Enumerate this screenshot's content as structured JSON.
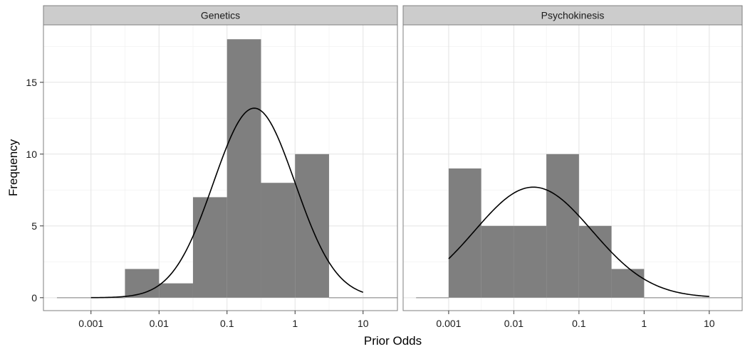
{
  "chart_data": {
    "type": "histogram",
    "xlabel": "Prior Odds",
    "ylabel": "Frequency",
    "x_scale": "log10",
    "xlim": [
      0.0002,
      32
    ],
    "ylim": [
      -0.9,
      19
    ],
    "x_ticks": [
      0.001,
      0.01,
      0.1,
      1,
      10
    ],
    "x_tick_labels": [
      "0.001",
      "0.01",
      "0.1",
      "1",
      "10"
    ],
    "y_ticks": [
      0,
      5,
      10,
      15
    ],
    "y_tick_labels": [
      "0",
      "5",
      "10",
      "15"
    ],
    "grid": true,
    "bar_color": "#7f7f7f",
    "curve_color": "#000000",
    "panels": [
      {
        "title": "Genetics",
        "bins": [
          {
            "x0": 0.000316,
            "x1": 0.001,
            "count": 0
          },
          {
            "x0": 0.001,
            "x1": 0.00316,
            "count": 0
          },
          {
            "x0": 0.00316,
            "x1": 0.01,
            "count": 2
          },
          {
            "x0": 0.01,
            "x1": 0.0316,
            "count": 1
          },
          {
            "x0": 0.0316,
            "x1": 0.1,
            "count": 7
          },
          {
            "x0": 0.1,
            "x1": 0.316,
            "count": 18
          },
          {
            "x0": 0.316,
            "x1": 1,
            "count": 8
          },
          {
            "x0": 1,
            "x1": 3.16,
            "count": 10
          },
          {
            "x0": 3.16,
            "x1": 10,
            "count": 0
          },
          {
            "x0": 10,
            "x1": 31.6,
            "count": 0
          }
        ],
        "curve": {
          "mean_log10": -0.6,
          "sd_log10": 0.6,
          "peak": 13.2,
          "x_from": 0.001,
          "x_to": 10
        }
      },
      {
        "title": "Psychokinesis",
        "bins": [
          {
            "x0": 0.000316,
            "x1": 0.001,
            "count": 0
          },
          {
            "x0": 0.001,
            "x1": 0.00316,
            "count": 9
          },
          {
            "x0": 0.00316,
            "x1": 0.01,
            "count": 5
          },
          {
            "x0": 0.01,
            "x1": 0.0316,
            "count": 5
          },
          {
            "x0": 0.0316,
            "x1": 0.1,
            "count": 10
          },
          {
            "x0": 0.1,
            "x1": 0.316,
            "count": 5
          },
          {
            "x0": 0.316,
            "x1": 1,
            "count": 2
          },
          {
            "x0": 1,
            "x1": 3.16,
            "count": 0
          },
          {
            "x0": 3.16,
            "x1": 10,
            "count": 0
          },
          {
            "x0": 10,
            "x1": 31.6,
            "count": 0
          }
        ],
        "curve": {
          "mean_log10": -1.7,
          "sd_log10": 0.9,
          "peak": 7.7,
          "x_from": 0.001,
          "x_to": 10
        }
      }
    ]
  }
}
